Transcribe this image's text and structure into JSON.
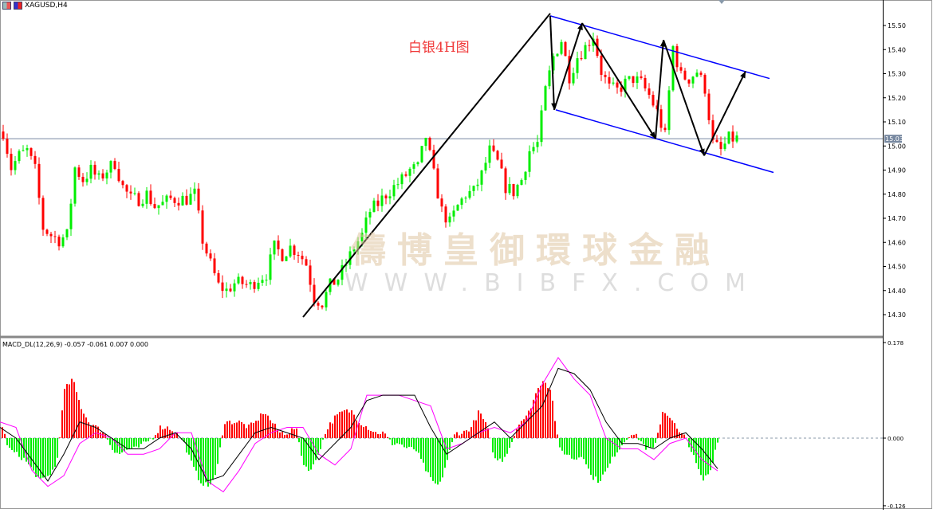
{
  "window": {
    "symbol_title": "XAGUSD,H4"
  },
  "annotation_text": "白银4H图",
  "watermark": {
    "name": "儔博皇御環球金融",
    "url": "WWW.BIBFX.COM"
  },
  "colors": {
    "bull": "#00ee00",
    "bear": "#ff0000",
    "macd_line": "#000000",
    "signal_line": "#ff00ff",
    "trendline": "#000000",
    "channel": "#0000ff",
    "annotation": "#f03a3a"
  },
  "chart_data": [
    {
      "type": "candlestick",
      "title": "XAGUSD,H4",
      "y_ticks": [
        "15.50",
        "15.40",
        "15.30",
        "15.20",
        "15.10",
        "15.00",
        "14.90",
        "14.80",
        "14.70",
        "14.60",
        "14.50",
        "14.40",
        "14.30"
      ],
      "ylim": [
        14.25,
        15.56
      ],
      "current_price": "15.03",
      "grid": false,
      "closes_sampled": [
        15.06,
        14.91,
        14.96,
        14.98,
        14.9,
        14.66,
        14.63,
        14.61,
        14.63,
        14.91,
        14.86,
        14.9,
        14.86,
        14.9,
        14.93,
        14.83,
        14.78,
        14.78,
        14.8,
        14.75,
        14.76,
        14.78,
        14.78,
        14.78,
        14.8,
        14.61,
        14.51,
        14.42,
        14.4,
        14.43,
        14.43,
        14.42,
        14.45,
        14.47,
        14.58,
        14.55,
        14.58,
        14.56,
        14.51,
        14.37,
        14.35,
        14.42,
        14.45,
        14.51,
        14.58,
        14.63,
        14.73,
        14.76,
        14.8,
        14.83,
        14.86,
        14.9,
        14.91,
        15.04,
        14.88,
        14.73,
        14.68,
        14.75,
        14.8,
        14.81,
        14.88,
        14.98,
        14.93,
        14.83,
        14.81,
        14.86,
        14.98,
        15.01,
        15.23,
        15.37,
        15.44,
        15.29,
        15.37,
        15.41,
        15.46,
        15.31,
        15.24,
        15.23,
        15.26,
        15.28,
        15.26,
        15.21,
        15.14,
        15.04,
        15.41,
        15.29,
        15.28,
        15.31,
        15.24,
        15.01,
        14.98,
        15.03,
        15.03
      ],
      "drawn_lines": [
        {
          "kind": "trendline",
          "points": [
            [
              38,
              14.29
            ],
            [
              69,
              15.55
            ]
          ]
        },
        {
          "kind": "channel-upper",
          "points": [
            [
              69,
              15.54
            ],
            [
              96.5,
              15.28
            ]
          ]
        },
        {
          "kind": "channel-lower",
          "points": [
            [
              69.7,
              15.15
            ],
            [
              97,
              14.89
            ]
          ]
        },
        {
          "kind": "zigzag-arrows",
          "points": [
            [
              69,
              15.54
            ],
            [
              69.5,
              15.15
            ],
            [
              73,
              15.51
            ],
            [
              82.2,
              15.03
            ],
            [
              83.2,
              15.44
            ],
            [
              88.3,
              14.96
            ],
            [
              93.5,
              15.31
            ]
          ]
        }
      ]
    },
    {
      "type": "bar+line",
      "title": "MACD_DL(12,26,9) -0.057 -0.061 0.007 0.000",
      "y_ticks": [
        "0.178",
        "0.000",
        "-0.126"
      ],
      "ylim": [
        -0.126,
        0.178
      ],
      "histogram_sampled": [
        0.03,
        -0.02,
        -0.03,
        -0.04,
        -0.06,
        -0.08,
        -0.07,
        -0.05,
        0.09,
        0.11,
        0.06,
        0.03,
        0.02,
        0.01,
        -0.02,
        -0.03,
        -0.02,
        -0.02,
        -0.01,
        0.0,
        0.02,
        0.02,
        0.01,
        -0.01,
        -0.05,
        -0.08,
        -0.09,
        -0.07,
        0.03,
        0.03,
        0.03,
        0.02,
        0.03,
        0.05,
        0.03,
        0.01,
        0.01,
        0.02,
        -0.05,
        -0.06,
        -0.02,
        0.02,
        0.04,
        0.05,
        0.05,
        0.03,
        0.02,
        0.01,
        0.01,
        -0.01,
        -0.01,
        -0.02,
        -0.02,
        -0.05,
        -0.08,
        -0.09,
        -0.04,
        0.01,
        0.01,
        0.02,
        0.05,
        0.02,
        -0.04,
        -0.04,
        -0.01,
        0.03,
        0.04,
        0.08,
        0.11,
        0.09,
        -0.02,
        -0.03,
        -0.04,
        -0.03,
        -0.07,
        -0.08,
        -0.06,
        -0.03,
        -0.01,
        0.01,
        0.0,
        -0.02,
        -0.02,
        0.05,
        0.04,
        0.01,
        0.0,
        -0.04,
        -0.08,
        -0.06,
        0.003
      ],
      "macd_line_sampled": [
        0.02,
        0.0,
        -0.04,
        -0.08,
        -0.03,
        0.03,
        0.02,
        0.0,
        -0.02,
        -0.02,
        0.0,
        0.01,
        -0.02,
        -0.08,
        -0.07,
        -0.03,
        0.01,
        0.02,
        0.01,
        0.0,
        -0.04,
        -0.01,
        0.02,
        0.07,
        0.08,
        0.08,
        0.08,
        0.02,
        -0.03,
        -0.01,
        0.01,
        0.03,
        0.0,
        0.03,
        0.06,
        0.13,
        0.12,
        0.09,
        0.03,
        -0.01,
        -0.01,
        -0.02,
        0.0,
        0.01,
        -0.02,
        -0.057
      ],
      "signal_line_sampled": [
        0.03,
        0.02,
        -0.06,
        -0.09,
        -0.07,
        -0.01,
        0.01,
        0.0,
        -0.03,
        -0.03,
        -0.02,
        0.01,
        0.01,
        -0.08,
        -0.1,
        -0.06,
        -0.01,
        0.01,
        0.02,
        0.02,
        -0.03,
        -0.05,
        -0.02,
        0.08,
        0.08,
        0.08,
        0.07,
        0.06,
        -0.02,
        -0.01,
        0.01,
        0.02,
        0.01,
        0.03,
        0.1,
        0.15,
        0.11,
        0.08,
        0.0,
        -0.02,
        -0.02,
        -0.04,
        -0.01,
        0.0,
        -0.04,
        -0.061
      ]
    }
  ]
}
